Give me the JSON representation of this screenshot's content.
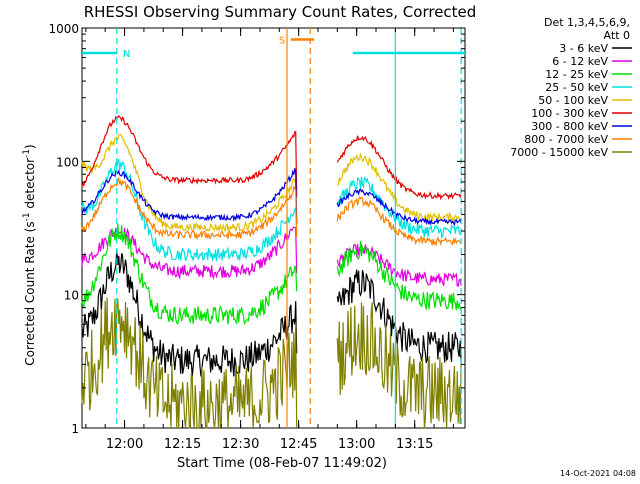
{
  "chart_data": {
    "type": "line",
    "title": "RHESSI Observing Summary Count Rates, Corrected",
    "xlabel": "Start Time (08-Feb-07 11:49:02)",
    "ylabel_main": "Corrected Count Rate (s",
    "ylabel_sup": "-1",
    "ylabel_tail": " detector",
    "ylabel_sup2": "-1",
    "ylabel_close": ")",
    "y_scale": "log",
    "ylim": [
      1,
      1000
    ],
    "xlim": [
      "11:49:02",
      "13:28:00"
    ],
    "x_ticks": [
      {
        "label": "12:00",
        "min": 11
      },
      {
        "label": "12:15",
        "min": 26
      },
      {
        "label": "12:30",
        "min": 41
      },
      {
        "label": "12:45",
        "min": 56
      },
      {
        "label": "13:00",
        "min": 71
      },
      {
        "label": "13:15",
        "min": 86
      }
    ],
    "y_ticks": [
      {
        "label": "1",
        "value": 1
      },
      {
        "label": "10",
        "value": 10
      },
      {
        "label": "100",
        "value": 100
      },
      {
        "label": "1000",
        "value": 1000
      }
    ],
    "legend_header": [
      "Det 1,3,4,5,6,9,",
      "Att 0"
    ],
    "legend_placement": "right",
    "gap_minutes": [
      55.5,
      66
    ],
    "series": [
      {
        "name": "3 - 6 keV",
        "color": "#000000",
        "valley": 3.2,
        "peak": 17,
        "pre": 4.5,
        "post": 4.0,
        "noise": 0.12
      },
      {
        "name": "6 - 12 keV",
        "color": "#e000e0",
        "valley": 15,
        "peak": 30,
        "pre": 17,
        "post": 13,
        "noise": 0.05
      },
      {
        "name": "12 - 25 keV",
        "color": "#00e000",
        "valley": 7,
        "peak": 30,
        "pre": 7.5,
        "post": 9,
        "noise": 0.07
      },
      {
        "name": "25 - 50 keV",
        "color": "#00e0e0",
        "valley": 20,
        "peak": 95,
        "pre": 40,
        "post": 30,
        "noise": 0.05
      },
      {
        "name": "50 - 100 keV",
        "color": "#e0c000",
        "valley": 32,
        "peak": 150,
        "pre": 90,
        "post": 38,
        "noise": 0.03
      },
      {
        "name": "100 - 300 keV",
        "color": "#e00000",
        "valley": 72,
        "peak": 210,
        "pre": 55,
        "post": 55,
        "noise": 0.02
      },
      {
        "name": "300 - 800 keV",
        "color": "#0000e0",
        "valley": 38,
        "peak": 82,
        "pre": 38,
        "post": 35,
        "noise": 0.02
      },
      {
        "name": "800 - 7000 keV",
        "color": "#ff8000",
        "valley": 28,
        "peak": 70,
        "pre": 27,
        "post": 25,
        "noise": 0.03
      },
      {
        "name": "7000 - 15000 keV",
        "color": "#808000",
        "valley": 1.5,
        "peak": 7,
        "pre": 2.0,
        "post": 1.8,
        "noise": 0.3
      }
    ],
    "markers": [
      {
        "label": "N",
        "color": "#00e0e0",
        "from_min": -9,
        "to_min": 9,
        "level": 650
      },
      {
        "label": "N",
        "color": "#00e0e0",
        "from_min": 70,
        "to_min": 99,
        "level": 650
      },
      {
        "label": "S",
        "color": "#ff8000",
        "from_min": 54,
        "to_min": 60,
        "level": 820
      }
    ],
    "vlines": [
      {
        "min": 9,
        "color": "#00e0e0",
        "style": "dashed"
      },
      {
        "min": 59,
        "color": "#ff8000",
        "style": "dashed"
      },
      {
        "min": 81,
        "color": "#00e0e0",
        "style": "solid"
      },
      {
        "min": 98,
        "color": "#00e0e0",
        "style": "dashed"
      },
      {
        "min": 53,
        "color": "#ff8000",
        "style": "solid"
      }
    ],
    "grid": false
  },
  "footer": {
    "timestamp": "14-Oct-2021 04:08"
  }
}
